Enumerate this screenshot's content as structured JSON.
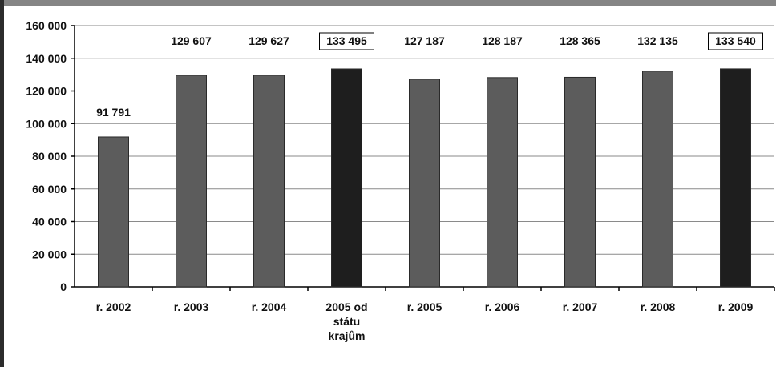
{
  "chart_data": {
    "type": "bar",
    "title": "",
    "xlabel": "",
    "ylabel": "",
    "ylim": [
      0,
      160000
    ],
    "ytick_values": [
      0,
      20000,
      40000,
      60000,
      80000,
      100000,
      120000,
      140000,
      160000
    ],
    "ytick_labels": [
      "0",
      "20 000",
      "40 000",
      "60 000",
      "80 000",
      "100 000",
      "120 000",
      "140 000",
      "160 000"
    ],
    "grid": true,
    "categories": [
      [
        "r. 2002"
      ],
      [
        "r. 2003"
      ],
      [
        "r. 2004"
      ],
      [
        "2005 od",
        "státu",
        "krajům"
      ],
      [
        "r. 2005"
      ],
      [
        "r. 2006"
      ],
      [
        "r. 2007"
      ],
      [
        "r. 2008"
      ],
      [
        "r. 2009"
      ]
    ],
    "values": [
      91791,
      129607,
      129627,
      133495,
      127187,
      128187,
      128365,
      132135,
      133540
    ],
    "value_labels": [
      "91 791",
      "129 607",
      "129 627",
      "133 495",
      "127 187",
      "128 187",
      "128 365",
      "132 135",
      "133 540"
    ],
    "highlighted": [
      false,
      false,
      false,
      true,
      false,
      false,
      false,
      false,
      true
    ],
    "colors": {
      "bar": "#5c5c5c",
      "highlight": "#1e1e1e",
      "grid": "#8a8a8a",
      "axis": "#000000"
    }
  }
}
